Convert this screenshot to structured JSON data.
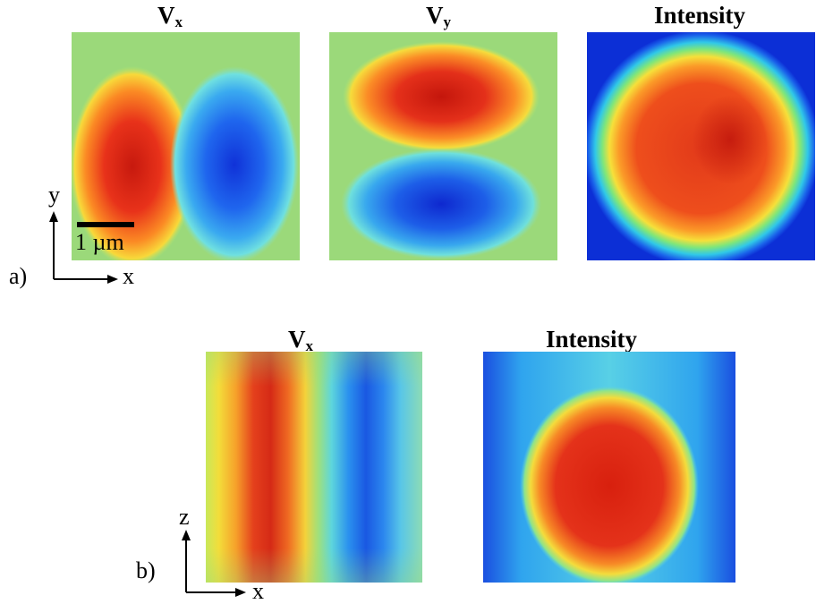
{
  "figure": {
    "panel_a": {
      "label": "a)",
      "titles": {
        "vx_main": "V",
        "vx_sub": "x",
        "vy_main": "V",
        "vy_sub": "y",
        "intensity": "Intensity"
      },
      "scale_bar": "1 µm",
      "axis_y": "y",
      "axis_x": "x"
    },
    "panel_b": {
      "label": "b)",
      "titles": {
        "vx_main": "V",
        "vx_sub": "x",
        "intensity": "Intensity"
      },
      "axis_z": "z",
      "axis_x": "x"
    }
  },
  "colors": {
    "colormap": "jet",
    "background_green": "#8fd880",
    "deep_blue": "#0c2fd6",
    "red": "#d41a10"
  }
}
